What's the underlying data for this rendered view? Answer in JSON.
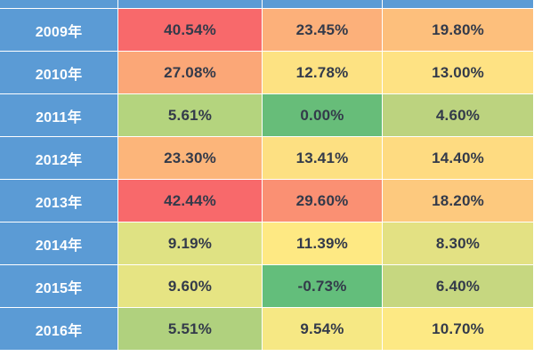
{
  "chart_data": {
    "type": "table",
    "columns": [
      "",
      "",
      "",
      ""
    ],
    "rows": [
      {
        "year": "2009年",
        "values": [
          "40.54%",
          "23.45%",
          "19.80%"
        ],
        "colors": [
          "#f8696b",
          "#fcb07a",
          "#fdbf7c"
        ]
      },
      {
        "year": "2010年",
        "values": [
          "27.08%",
          "12.78%",
          "13.00%"
        ],
        "colors": [
          "#fba777",
          "#fde282",
          "#fee283"
        ]
      },
      {
        "year": "2011年",
        "values": [
          "5.61%",
          "0.00%",
          "4.60%"
        ],
        "colors": [
          "#b4d47e",
          "#67bd79",
          "#bcd37f"
        ]
      },
      {
        "year": "2012年",
        "values": [
          "23.30%",
          "13.41%",
          "14.40%"
        ],
        "colors": [
          "#fcb57a",
          "#fde082",
          "#fedb81"
        ]
      },
      {
        "year": "2013年",
        "values": [
          "42.44%",
          "29.60%",
          "18.20%"
        ],
        "colors": [
          "#f8696b",
          "#fa9073",
          "#fdc97e"
        ]
      },
      {
        "year": "2014年",
        "values": [
          "9.19%",
          "11.39%",
          "8.30%"
        ],
        "colors": [
          "#dfe283",
          "#fee983",
          "#e3e183"
        ]
      },
      {
        "year": "2015年",
        "values": [
          "9.60%",
          "-0.73%",
          "6.40%"
        ],
        "colors": [
          "#e6e483",
          "#63be7b",
          "#c6d780"
        ]
      },
      {
        "year": "2016年",
        "values": [
          "5.51%",
          "9.54%",
          "10.70%"
        ],
        "colors": [
          "#b0d17e",
          "#f6e884",
          "#fde984"
        ]
      }
    ]
  }
}
